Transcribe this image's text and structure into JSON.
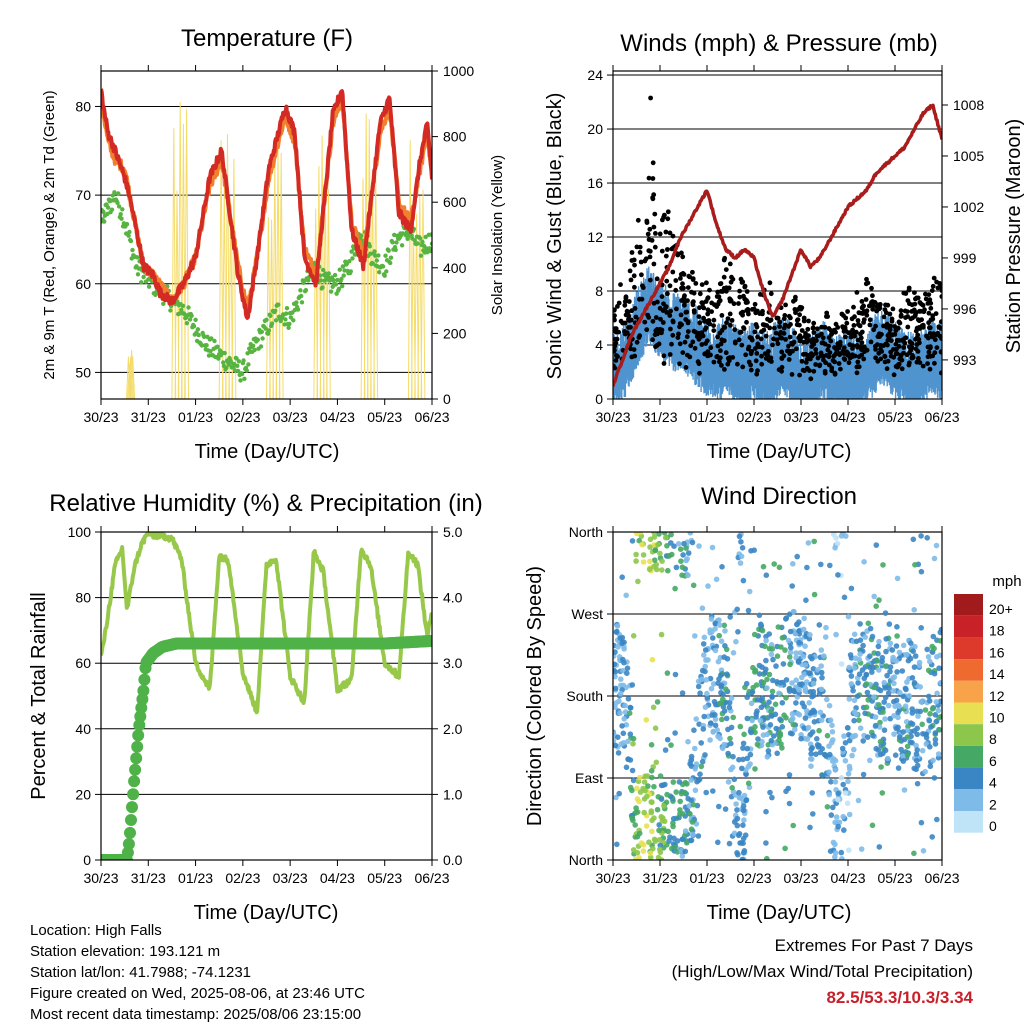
{
  "panels": {
    "temperature": {
      "title": "Temperature (F)",
      "ylabel_left": "2m & 9m T (Red, Orange) & 2m Td (Green)",
      "ylabel_right": "Solar Insolation (Yellow)",
      "xlabel": "Time (Day/UTC)"
    },
    "winds": {
      "title": "Winds (mph) & Pressure (mb)",
      "ylabel_left": "Sonic Wind & Gust (Blue, Black)",
      "ylabel_right": "Station Pressure (Maroon)",
      "xlabel": "Time (Day/UTC)"
    },
    "humidity": {
      "title": "Relative Humidity (%) & Precipitation (in)",
      "ylabel_left": "Percent & Total Rainfall",
      "xlabel": "Time (Day/UTC)"
    },
    "direction": {
      "title": "Wind Direction",
      "ylabel_left": "Direction (Colored By Speed)",
      "xlabel": "Time (Day/UTC)",
      "colorbar_unit": "mph"
    }
  },
  "info": {
    "location": "Location: High Falls",
    "elevation": "Station elevation: 193.121 m",
    "latlon": "Station lat/lon: 41.7988; -74.1231",
    "created": "Figure created on Wed, 2025-08-06, at 23:46 UTC",
    "latest": "Most recent data timestamp: 2025/08/06 23:15:00"
  },
  "extremes": {
    "line1": "Extremes For Past 7 Days",
    "line2": "(High/Low/Max Wind/Total Precipitation)",
    "values": "82.5/53.3/10.3/3.34"
  },
  "colors": {
    "temp_2m": "#d42a24",
    "temp_9m": "#f0802e",
    "dewpoint": "#58b440",
    "solar": "#f5dc6a",
    "wind": "#4f94cf",
    "gust": "#000000",
    "pressure": "#a81c1c",
    "rh": "#98c84a",
    "precip": "#4fb248"
  },
  "chart_data": [
    {
      "type": "line",
      "title": "Temperature (F)",
      "xlabel": "Time (Day/UTC)",
      "ylabel": "2m & 9m T (Red, Orange) & 2m Td (Green)",
      "y2label": "Solar Insolation (Yellow)",
      "x_ticks": [
        "30/23",
        "31/23",
        "01/23",
        "02/23",
        "03/23",
        "04/23",
        "05/23",
        "06/23"
      ],
      "xlim": [
        0,
        7
      ],
      "ylim": [
        47,
        84
      ],
      "y_ticks": [
        50,
        60,
        70,
        80
      ],
      "y2lim": [
        0,
        1000
      ],
      "y2_ticks": [
        0,
        200,
        400,
        600,
        800,
        1000
      ],
      "grid": "horizontal",
      "series": [
        {
          "name": "2m T",
          "axis": "left",
          "x": [
            0,
            0.05,
            0.15,
            0.3,
            0.5,
            0.6,
            0.75,
            0.9,
            1.1,
            1.25,
            1.5,
            1.75,
            2,
            2.3,
            2.55,
            2.9,
            3.1,
            3.3,
            3.55,
            3.9,
            4.1,
            4.3,
            4.55,
            4.9,
            5.1,
            5.3,
            5.55,
            5.9,
            6.1,
            6.3,
            6.55,
            6.75,
            6.9,
            7
          ],
          "y": [
            82,
            80,
            77,
            75,
            72,
            70,
            66,
            62,
            61,
            59,
            58,
            60,
            63,
            72,
            75,
            61,
            56,
            63,
            73,
            80,
            77,
            63,
            60,
            79,
            82,
            66,
            62,
            78,
            81,
            68,
            66,
            74,
            78,
            72
          ]
        },
        {
          "name": "9m T",
          "axis": "left",
          "x": [
            0,
            0.15,
            0.3,
            0.5,
            0.75,
            0.9,
            1.1,
            1.5,
            1.75,
            2,
            2.3,
            2.55,
            2.9,
            3.1,
            3.3,
            3.55,
            3.9,
            4.1,
            4.3,
            4.55,
            4.9,
            5.1,
            5.3,
            5.55,
            5.9,
            6.1,
            6.3,
            6.55,
            6.75,
            6.9,
            7
          ],
          "y": [
            81,
            76,
            74,
            73,
            66,
            62,
            61,
            58,
            60,
            63,
            71,
            74,
            62,
            57,
            63,
            72,
            79,
            76,
            64,
            61,
            78,
            81,
            67,
            63,
            77,
            80,
            69,
            67,
            73,
            77,
            72
          ]
        },
        {
          "name": "2m Td",
          "axis": "left",
          "x": [
            0,
            0.1,
            0.3,
            0.45,
            0.6,
            0.75,
            0.9,
            1.1,
            1.5,
            1.75,
            2,
            2.25,
            2.5,
            2.75,
            3,
            3.25,
            3.5,
            3.75,
            4,
            4.25,
            4.5,
            4.75,
            5,
            5.25,
            5.5,
            5.75,
            6,
            6.25,
            6.5,
            6.75,
            7
          ],
          "y": [
            67,
            68,
            70,
            68,
            65,
            62,
            61,
            60,
            58,
            57,
            55,
            53,
            52,
            51,
            50,
            53,
            55,
            57,
            56,
            59,
            62,
            60,
            60,
            62,
            66,
            63,
            62,
            65,
            66,
            64,
            65
          ]
        },
        {
          "name": "Solar Insolation",
          "axis": "right",
          "x": [
            0.55,
            0.6,
            0.65,
            0.7,
            1.45,
            1.6,
            1.75,
            1.9,
            2.45,
            2.6,
            2.75,
            2.9,
            3.45,
            3.6,
            3.75,
            3.9,
            4.45,
            4.6,
            4.75,
            4.9,
            5.45,
            5.6,
            5.75,
            5.9,
            6.45,
            6.6,
            6.75,
            6.9
          ],
          "y": [
            0,
            150,
            120,
            0,
            0,
            600,
            950,
            0,
            0,
            700,
            880,
            0,
            0,
            650,
            800,
            0,
            0,
            700,
            900,
            0,
            0,
            750,
            900,
            0,
            0,
            700,
            850,
            0
          ]
        }
      ]
    },
    {
      "type": "scatter",
      "title": "Winds (mph) & Pressure (mb)",
      "xlabel": "Time (Day/UTC)",
      "ylabel": "Sonic Wind & Gust (Blue, Black)",
      "y2label": "Station Pressure (Maroon)",
      "x_ticks": [
        "30/23",
        "31/23",
        "01/23",
        "02/23",
        "03/23",
        "04/23",
        "05/23",
        "06/23"
      ],
      "xlim": [
        0,
        7
      ],
      "ylim": [
        0,
        24.3
      ],
      "y_ticks": [
        0,
        4,
        8,
        12,
        16,
        20,
        24
      ],
      "y2lim": [
        990.7,
        1010
      ],
      "y2_ticks": [
        993,
        996,
        999,
        1002,
        1005,
        1008
      ],
      "grid": "horizontal",
      "series": [
        {
          "name": "Sonic Wind",
          "axis": "left",
          "x": [
            0,
            0.25,
            0.5,
            0.75,
            1,
            1.25,
            1.5,
            1.75,
            2,
            2.25,
            2.5,
            2.75,
            3,
            3.25,
            3.5,
            3.75,
            4,
            4.25,
            4.5,
            4.75,
            5,
            5.25,
            5.5,
            5.75,
            6,
            6.25,
            6.5,
            6.75,
            7
          ],
          "y": [
            2,
            3,
            5,
            7,
            6,
            5,
            5,
            4,
            3,
            3,
            3,
            2,
            3,
            2,
            3,
            3,
            2,
            2,
            3,
            2,
            2,
            2,
            3,
            4,
            3,
            2,
            2,
            3,
            3
          ]
        },
        {
          "name": "Gust",
          "axis": "left",
          "x": [
            0.1,
            0.3,
            0.5,
            0.7,
            0.8,
            0.9,
            1.0,
            1.1,
            1.2,
            1.4,
            1.6,
            1.8,
            2.0,
            2.2,
            2.4,
            2.6,
            2.8,
            3.0,
            3.3,
            3.6,
            3.9,
            4.2,
            4.5,
            4.8,
            5.1,
            5.4,
            5.7,
            6.0,
            6.3,
            6.6,
            6.9
          ],
          "y": [
            7,
            9,
            12,
            14,
            22,
            17,
            16,
            14,
            13,
            11,
            10,
            9,
            8,
            7,
            11,
            8,
            9,
            6,
            9,
            6,
            8,
            5,
            6,
            5,
            7,
            9,
            7,
            6,
            8,
            7,
            9
          ]
        },
        {
          "name": "Station Pressure",
          "axis": "right",
          "x": [
            0,
            0.2,
            0.4,
            0.6,
            0.8,
            1.0,
            1.2,
            1.4,
            1.6,
            1.8,
            2.0,
            2.2,
            2.4,
            2.6,
            2.8,
            3.0,
            3.2,
            3.4,
            3.6,
            3.8,
            4.0,
            4.2,
            4.4,
            4.6,
            4.8,
            5.0,
            5.2,
            5.4,
            5.6,
            5.8,
            6.0,
            6.2,
            6.4,
            6.6,
            6.8,
            7.0
          ],
          "y": [
            991.5,
            993,
            994.5,
            995.5,
            996.5,
            997.5,
            998.5,
            1000,
            1001,
            1002,
            1003,
            1001,
            999.5,
            999,
            999.5,
            999,
            997,
            995.5,
            996.5,
            998,
            999.5,
            998.5,
            999,
            1000,
            1001,
            1002,
            1002.5,
            1003,
            1004,
            1004.5,
            1005,
            1005.5,
            1006.5,
            1007.5,
            1008,
            1006
          ]
        }
      ]
    },
    {
      "type": "line",
      "title": "Relative Humidity (%) & Precipitation (in)",
      "xlabel": "Time (Day/UTC)",
      "ylabel": "Percent & Total Rainfall",
      "x_ticks": [
        "30/23",
        "31/23",
        "01/23",
        "02/23",
        "03/23",
        "04/23",
        "05/23",
        "06/23"
      ],
      "xlim": [
        0,
        7
      ],
      "ylim": [
        0,
        100
      ],
      "y_ticks": [
        0,
        20,
        40,
        60,
        80,
        100
      ],
      "y2lim": [
        0,
        5
      ],
      "y2_ticks": [
        "0.0",
        "1.0",
        "2.0",
        "3.0",
        "4.0",
        "5.0"
      ],
      "grid": "horizontal",
      "series": [
        {
          "name": "RH",
          "axis": "left",
          "x": [
            0,
            0.1,
            0.3,
            0.45,
            0.55,
            0.7,
            0.85,
            1.0,
            1.1,
            1.3,
            1.5,
            1.7,
            2.0,
            2.3,
            2.5,
            2.7,
            3.0,
            3.3,
            3.5,
            3.7,
            4.0,
            4.3,
            4.5,
            4.7,
            5.0,
            5.3,
            5.5,
            5.7,
            6.0,
            6.3,
            6.5,
            6.7,
            6.9,
            7.0
          ],
          "y": [
            62,
            70,
            90,
            95,
            76,
            89,
            96,
            100,
            99,
            99,
            98,
            92,
            60,
            52,
            93,
            91,
            57,
            45,
            90,
            92,
            56,
            48,
            94,
            88,
            52,
            55,
            95,
            90,
            60,
            56,
            94,
            90,
            68,
            76
          ]
        },
        {
          "name": "Total Rainfall",
          "axis": "right",
          "x": [
            0,
            0.3,
            0.55,
            0.6,
            0.7,
            0.8,
            0.9,
            0.95,
            1.1,
            1.3,
            1.6,
            2.0,
            3.0,
            4.0,
            5.0,
            6.0,
            7.0
          ],
          "y": [
            0,
            0,
            0,
            0.3,
            1.2,
            2.0,
            2.6,
            3.0,
            3.15,
            3.25,
            3.3,
            3.3,
            3.3,
            3.3,
            3.3,
            3.3,
            3.34
          ]
        }
      ]
    },
    {
      "type": "scatter",
      "title": "Wind Direction",
      "xlabel": "Time (Day/UTC)",
      "ylabel": "Direction (Colored By Speed)",
      "x_ticks": [
        "30/23",
        "31/23",
        "01/23",
        "02/23",
        "03/23",
        "04/23",
        "05/23",
        "06/23"
      ],
      "xlim": [
        0,
        7
      ],
      "ylim": [
        0,
        360
      ],
      "y_ticks": [
        "North",
        "East",
        "South",
        "West",
        "North"
      ],
      "colorbar": {
        "unit": "mph",
        "labels": [
          "20+",
          "18",
          "16",
          "14",
          "12",
          "10",
          "8",
          "6",
          "4",
          "2",
          "0"
        ],
        "colors": [
          "#a11a1c",
          "#c82127",
          "#dd3a2b",
          "#ef6a2f",
          "#f8a24a",
          "#e8e052",
          "#8cc64a",
          "#45a864",
          "#3a86c4",
          "#7fbbe8",
          "#bfe3f7"
        ]
      },
      "series": [
        {
          "name": "Direction",
          "x": [
            0.1,
            0.3,
            0.5,
            0.7,
            0.9,
            1.1,
            1.3,
            1.6,
            1.9,
            2.1,
            2.4,
            2.7,
            3.0,
            3.3,
            3.6,
            3.9,
            4.2,
            4.5,
            4.8,
            5.1,
            5.4,
            5.7,
            6.0,
            6.3,
            6.6,
            6.9
          ],
          "y": [
            190,
            170,
            20,
            25,
            30,
            18,
            22,
            20,
            170,
            200,
            190,
            15,
            200,
            180,
            190,
            210,
            170,
            160,
            10,
            190,
            200,
            170,
            180,
            175,
            160,
            185
          ],
          "speed": [
            3,
            3,
            8,
            9,
            7,
            6,
            5,
            4,
            3,
            3,
            4,
            3,
            5,
            4,
            5,
            3,
            3,
            4,
            2,
            3,
            4,
            4,
            3,
            4,
            3,
            4
          ]
        }
      ]
    }
  ]
}
